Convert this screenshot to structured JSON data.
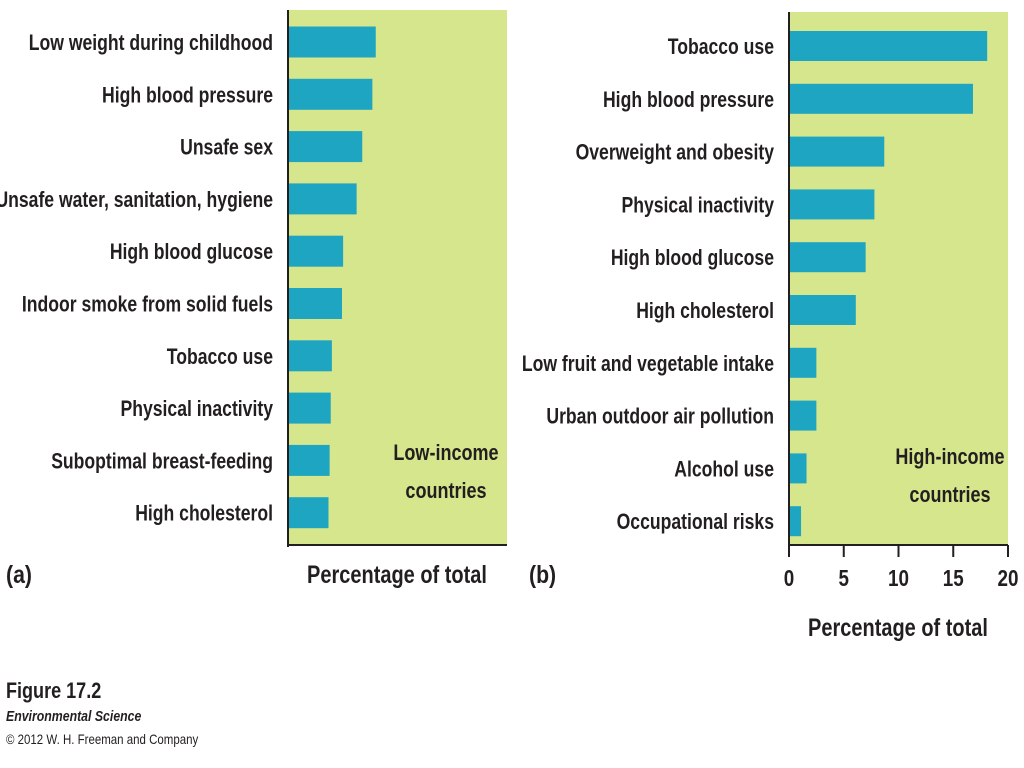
{
  "chart_data": [
    {
      "type": "bar",
      "orientation": "horizontal",
      "panel_label": "(a)",
      "title": "Low-income countries",
      "title_lines": [
        "Low-income",
        "countries"
      ],
      "xlabel": "Percentage of total",
      "ylabel": "",
      "xlim": [
        0,
        20
      ],
      "categories": [
        "Low weight during childhood",
        "High blood pressure",
        "Unsafe sex",
        "Unsafe water, sanitation, hygiene",
        "High blood glucose",
        "Indoor smoke from solid fuels",
        "Tobacco use",
        "Physical inactivity",
        "Suboptimal breast-feeding",
        "High cholesterol"
      ],
      "values": [
        7.8,
        7.5,
        6.6,
        6.1,
        4.9,
        4.8,
        3.9,
        3.8,
        3.7,
        3.6
      ],
      "colors": {
        "bar": "#1ea5c1",
        "background": "#d6e68c"
      }
    },
    {
      "type": "bar",
      "orientation": "horizontal",
      "panel_label": "(b)",
      "title": "High-income countries",
      "title_lines": [
        "High-income",
        "countries"
      ],
      "xlabel": "Percentage of total",
      "ylabel": "",
      "xlim": [
        0,
        20
      ],
      "xticks": [
        0,
        5,
        10,
        15,
        20
      ],
      "categories": [
        "Tobacco use",
        "High blood pressure",
        "Overweight and obesity",
        "Physical inactivity",
        "High blood glucose",
        "High cholesterol",
        "Low fruit and vegetable intake",
        "Urban outdoor air pollution",
        "Alcohol use",
        "Occupational risks"
      ],
      "values": [
        18.1,
        16.8,
        8.7,
        7.8,
        7.0,
        6.1,
        2.5,
        2.5,
        1.6,
        1.1
      ],
      "colors": {
        "bar": "#1ea5c1",
        "background": "#d6e68c"
      }
    }
  ],
  "figure": {
    "title": "Figure 17.2",
    "book": "Environmental Science",
    "copyright": "© 2012 W. H. Freeman and Company"
  }
}
